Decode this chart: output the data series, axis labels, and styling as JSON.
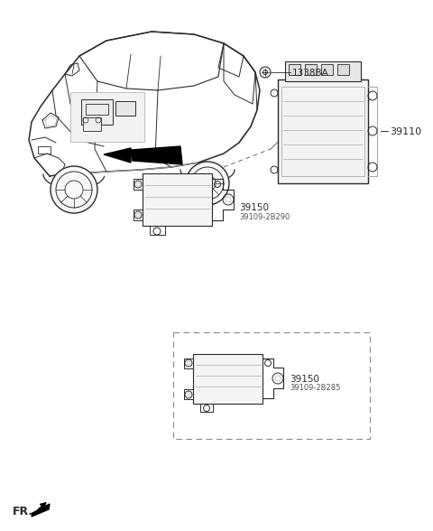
{
  "bg_color": "#ffffff",
  "line_color": "#2a2a2a",
  "gray_line": "#888888",
  "light_gray": "#aaaaaa",
  "label_1338BA": "1338BA",
  "label_39110": "39110",
  "label_39150_top": "39150",
  "label_39109_2B290": "39109-2B290",
  "label_39150_bot": "39150",
  "label_39109_2B285": "39109-2B285",
  "label_FR": "FR.",
  "fig_width": 4.8,
  "fig_height": 5.88,
  "dpi": 100
}
